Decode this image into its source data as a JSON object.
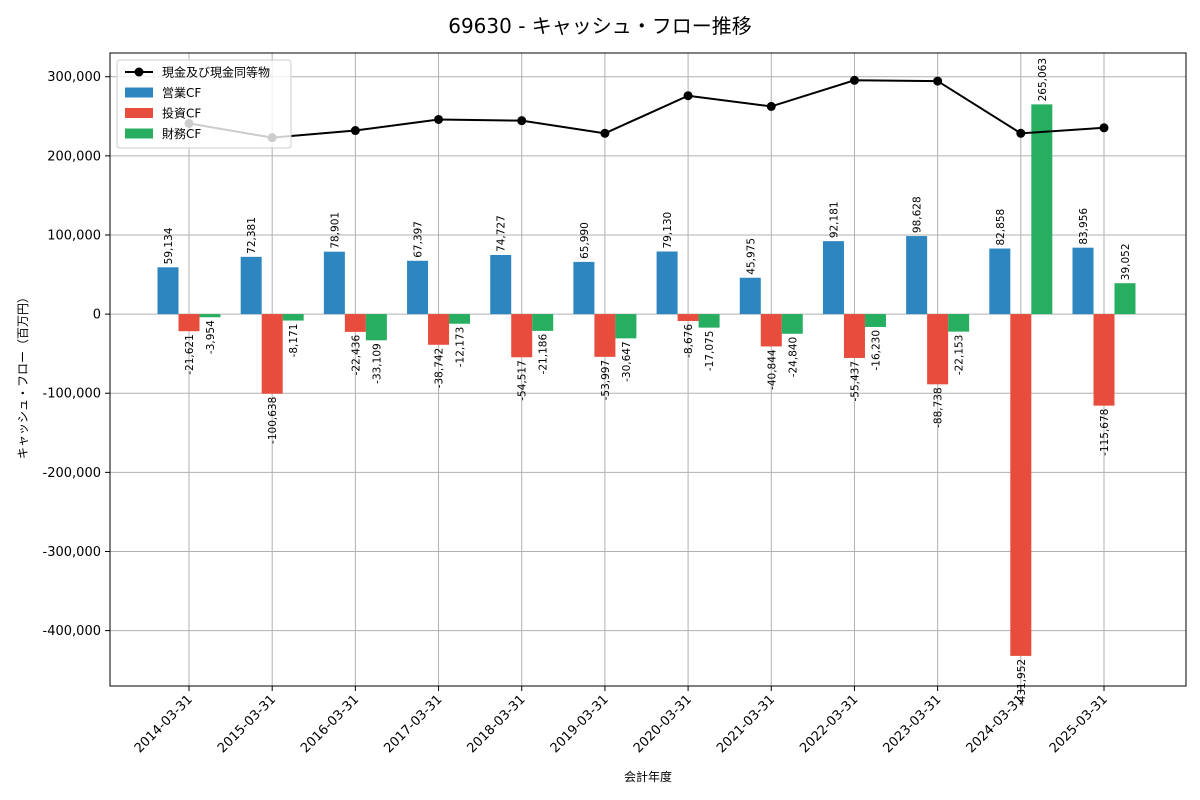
{
  "chart_data": {
    "type": "bar",
    "title": "69630 - キャッシュ・フロー推移",
    "xlabel": "会計年度",
    "ylabel": "キャッシュ・フロー（百万円）",
    "ylim": [
      -470000,
      330000
    ],
    "yticks": [
      300000,
      200000,
      100000,
      0,
      -100000,
      -200000,
      -300000,
      -400000
    ],
    "ytick_labels": [
      "300,000",
      "200,000",
      "100,000",
      "0",
      "-100,000",
      "-200,000",
      "-300,000",
      "-400,000"
    ],
    "grid": true,
    "legend_position": "top-left",
    "categories": [
      "2014-03-31",
      "2015-03-31",
      "2016-03-31",
      "2017-03-31",
      "2018-03-31",
      "2019-03-31",
      "2020-03-31",
      "2021-03-31",
      "2022-03-31",
      "2023-03-31",
      "2024-03-31",
      "2025-03-31"
    ],
    "series": [
      {
        "name": "営業CF",
        "kind": "bar",
        "color": "#2e86c1",
        "values": [
          59134,
          72381,
          78901,
          67397,
          74727,
          65990,
          79130,
          45975,
          92181,
          98628,
          82858,
          83956
        ],
        "labels": [
          "59,134",
          "72,381",
          "78,901",
          "67,397",
          "74,727",
          "65,990",
          "79,130",
          "45,975",
          "92,181",
          "98,628",
          "82,858",
          "83,956"
        ]
      },
      {
        "name": "投資CF",
        "kind": "bar",
        "color": "#e74c3c",
        "values": [
          -21621,
          -100638,
          -22436,
          -38742,
          -54517,
          -53997,
          -8676,
          -40844,
          -55437,
          -88738,
          -431952,
          -115678
        ],
        "labels": [
          "-21,621",
          "-100,638",
          "-22,436",
          "-38,742",
          "-54,517",
          "-53,997",
          "-8,676",
          "-40,844",
          "-55,437",
          "-88,738",
          "-431,952",
          "-115,678"
        ]
      },
      {
        "name": "財務CF",
        "kind": "bar",
        "color": "#27ae60",
        "values": [
          -3954,
          -8171,
          -33109,
          -12173,
          -21186,
          -30647,
          -17075,
          -24840,
          -16230,
          -22153,
          265063,
          39052
        ],
        "labels": [
          "-3,954",
          "-8,171",
          "-33,109",
          "-12,173",
          "-21,186",
          "-30,647",
          "-17,075",
          "-24,840",
          "-16,230",
          "-22,153",
          "265,063",
          "39,052"
        ]
      },
      {
        "name": "現金及び現金同等物",
        "kind": "line",
        "color": "#000000",
        "values": [
          241000,
          223000,
          232000,
          246000,
          244500,
          228500,
          276000,
          262500,
          295500,
          294500,
          228500,
          235500
        ]
      }
    ]
  }
}
